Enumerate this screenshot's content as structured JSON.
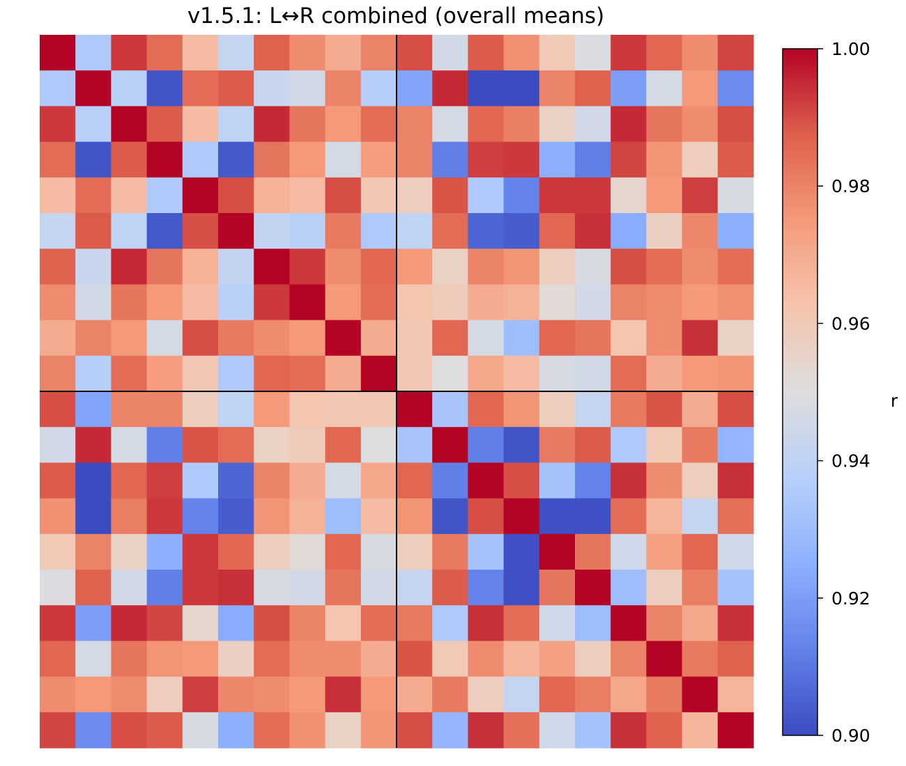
{
  "chart_data": {
    "type": "heatmap",
    "title": "v1.5.1: L↔R combined (overall means)",
    "colorbar": {
      "label": "r",
      "vmin": 0.9,
      "vmax": 1.0,
      "ticks": [
        "0.90",
        "0.92",
        "0.94",
        "0.96",
        "0.98",
        "1.00"
      ],
      "colormap": "coolwarm"
    },
    "n": 20,
    "quadrant_split_after_index": 10,
    "matrix": [
      [
        1.0,
        0.935,
        0.993,
        0.985,
        0.965,
        0.942,
        0.987,
        0.978,
        0.97,
        0.98,
        0.99,
        0.946,
        0.988,
        0.977,
        0.96,
        0.949,
        0.993,
        0.986,
        0.978,
        0.991
      ],
      [
        0.935,
        1.0,
        0.938,
        0.902,
        0.985,
        0.988,
        0.943,
        0.946,
        0.98,
        0.937,
        0.922,
        0.995,
        0.9,
        0.9,
        0.98,
        0.987,
        0.92,
        0.947,
        0.975,
        0.915
      ],
      [
        0.993,
        0.938,
        1.0,
        0.988,
        0.965,
        0.94,
        0.995,
        0.983,
        0.975,
        0.985,
        0.98,
        0.947,
        0.986,
        0.981,
        0.956,
        0.946,
        0.995,
        0.983,
        0.978,
        0.99
      ],
      [
        0.985,
        0.902,
        0.988,
        1.0,
        0.935,
        0.903,
        0.983,
        0.975,
        0.947,
        0.974,
        0.98,
        0.912,
        0.992,
        0.993,
        0.925,
        0.912,
        0.991,
        0.976,
        0.958,
        0.988
      ],
      [
        0.965,
        0.985,
        0.965,
        0.935,
        1.0,
        0.99,
        0.968,
        0.965,
        0.99,
        0.961,
        0.958,
        0.989,
        0.935,
        0.913,
        0.993,
        0.993,
        0.954,
        0.975,
        0.992,
        0.948
      ],
      [
        0.942,
        0.988,
        0.94,
        0.903,
        0.99,
        1.0,
        0.941,
        0.938,
        0.982,
        0.935,
        0.94,
        0.985,
        0.906,
        0.904,
        0.986,
        0.994,
        0.924,
        0.957,
        0.979,
        0.925
      ],
      [
        0.987,
        0.943,
        0.995,
        0.983,
        0.968,
        0.941,
        1.0,
        0.993,
        0.978,
        0.986,
        0.975,
        0.956,
        0.98,
        0.976,
        0.958,
        0.948,
        0.99,
        0.985,
        0.978,
        0.985
      ],
      [
        0.978,
        0.946,
        0.983,
        0.975,
        0.965,
        0.938,
        0.993,
        1.0,
        0.975,
        0.985,
        0.962,
        0.959,
        0.97,
        0.968,
        0.952,
        0.946,
        0.98,
        0.978,
        0.975,
        0.977
      ],
      [
        0.97,
        0.98,
        0.975,
        0.947,
        0.99,
        0.982,
        0.978,
        0.975,
        1.0,
        0.97,
        0.961,
        0.986,
        0.947,
        0.93,
        0.986,
        0.983,
        0.962,
        0.978,
        0.994,
        0.956
      ],
      [
        0.98,
        0.937,
        0.985,
        0.974,
        0.961,
        0.935,
        0.986,
        0.985,
        0.97,
        1.0,
        0.961,
        0.95,
        0.971,
        0.965,
        0.948,
        0.946,
        0.985,
        0.97,
        0.975,
        0.976
      ],
      [
        0.99,
        0.922,
        0.98,
        0.98,
        0.958,
        0.94,
        0.975,
        0.962,
        0.961,
        0.961,
        1.0,
        0.933,
        0.986,
        0.976,
        0.958,
        0.942,
        0.982,
        0.989,
        0.97,
        0.99
      ],
      [
        0.946,
        0.995,
        0.947,
        0.912,
        0.989,
        0.985,
        0.956,
        0.959,
        0.986,
        0.95,
        0.933,
        1.0,
        0.912,
        0.902,
        0.982,
        0.988,
        0.935,
        0.96,
        0.982,
        0.927
      ],
      [
        0.988,
        0.9,
        0.986,
        0.992,
        0.935,
        0.906,
        0.98,
        0.97,
        0.947,
        0.971,
        0.986,
        0.912,
        1.0,
        0.99,
        0.932,
        0.913,
        0.994,
        0.978,
        0.958,
        0.994
      ],
      [
        0.977,
        0.9,
        0.981,
        0.993,
        0.913,
        0.904,
        0.976,
        0.968,
        0.93,
        0.965,
        0.976,
        0.902,
        0.99,
        1.0,
        0.901,
        0.901,
        0.985,
        0.967,
        0.942,
        0.984
      ],
      [
        0.96,
        0.98,
        0.956,
        0.925,
        0.993,
        0.986,
        0.958,
        0.952,
        0.986,
        0.948,
        0.958,
        0.982,
        0.932,
        0.901,
        1.0,
        0.983,
        0.945,
        0.973,
        0.986,
        0.945
      ],
      [
        0.949,
        0.987,
        0.946,
        0.912,
        0.993,
        0.994,
        0.948,
        0.946,
        0.983,
        0.946,
        0.942,
        0.988,
        0.913,
        0.901,
        0.983,
        1.0,
        0.93,
        0.958,
        0.981,
        0.932
      ],
      [
        0.993,
        0.92,
        0.995,
        0.991,
        0.954,
        0.924,
        0.99,
        0.98,
        0.962,
        0.985,
        0.982,
        0.935,
        0.994,
        0.985,
        0.945,
        0.93,
        1.0,
        0.98,
        0.971,
        0.994
      ],
      [
        0.986,
        0.947,
        0.983,
        0.976,
        0.975,
        0.957,
        0.985,
        0.978,
        0.978,
        0.97,
        0.989,
        0.96,
        0.978,
        0.967,
        0.973,
        0.958,
        0.98,
        1.0,
        0.982,
        0.987
      ],
      [
        0.978,
        0.975,
        0.978,
        0.958,
        0.992,
        0.979,
        0.978,
        0.975,
        0.994,
        0.975,
        0.97,
        0.982,
        0.958,
        0.942,
        0.986,
        0.981,
        0.971,
        0.982,
        1.0,
        0.967
      ],
      [
        0.991,
        0.915,
        0.99,
        0.988,
        0.948,
        0.925,
        0.985,
        0.977,
        0.956,
        0.976,
        0.99,
        0.927,
        0.994,
        0.984,
        0.945,
        0.932,
        0.994,
        0.987,
        0.967,
        1.0
      ]
    ]
  }
}
